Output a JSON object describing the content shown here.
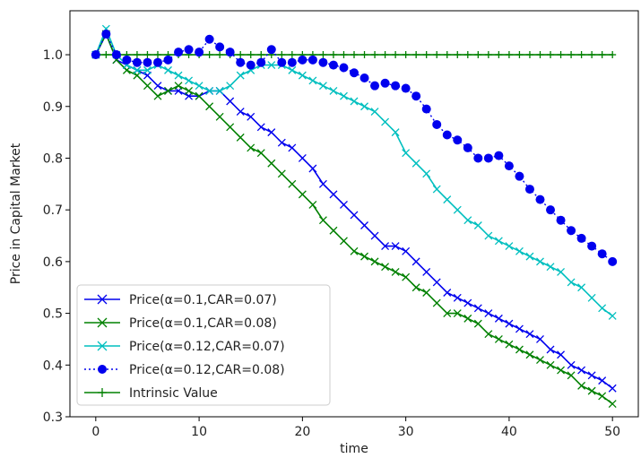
{
  "chart_data": {
    "type": "line",
    "title": "",
    "xlabel": "time",
    "ylabel": "Price in Capital Market",
    "xlim": [
      -2.5,
      52.5
    ],
    "ylim": [
      0.3,
      1.085
    ],
    "xticks": [
      0,
      10,
      20,
      30,
      40,
      50
    ],
    "yticks": [
      0.3,
      0.4,
      0.5,
      0.6,
      0.7,
      0.8,
      0.9,
      1.0
    ],
    "xtick_labels": [
      "0",
      "10",
      "20",
      "30",
      "40",
      "50"
    ],
    "ytick_labels": [
      "0.3",
      "0.4",
      "0.5",
      "0.6",
      "0.7",
      "0.8",
      "0.9",
      "1.0"
    ],
    "grid": false,
    "legend_position": "lower-left",
    "x": [
      0,
      1,
      2,
      3,
      4,
      5,
      6,
      7,
      8,
      9,
      10,
      11,
      12,
      13,
      14,
      15,
      16,
      17,
      18,
      19,
      20,
      21,
      22,
      23,
      24,
      25,
      26,
      27,
      28,
      29,
      30,
      31,
      32,
      33,
      34,
      35,
      36,
      37,
      38,
      39,
      40,
      41,
      42,
      43,
      44,
      45,
      46,
      47,
      48,
      49,
      50
    ],
    "series": [
      {
        "name": "Price(α=0.1,CAR=0.07)",
        "color": "#0000ee",
        "marker": "x",
        "linestyle": "solid",
        "values": [
          1.0,
          1.04,
          0.99,
          0.98,
          0.97,
          0.96,
          0.94,
          0.93,
          0.93,
          0.92,
          0.92,
          0.93,
          0.93,
          0.91,
          0.89,
          0.88,
          0.86,
          0.85,
          0.83,
          0.82,
          0.8,
          0.78,
          0.75,
          0.73,
          0.71,
          0.69,
          0.67,
          0.65,
          0.63,
          0.63,
          0.62,
          0.6,
          0.58,
          0.56,
          0.54,
          0.53,
          0.52,
          0.51,
          0.5,
          0.49,
          0.48,
          0.47,
          0.46,
          0.45,
          0.43,
          0.42,
          0.4,
          0.39,
          0.38,
          0.37,
          0.355
        ]
      },
      {
        "name": "Price(α=0.1,CAR=0.08)",
        "color": "#008000",
        "marker": "x",
        "linestyle": "solid",
        "values": [
          1.0,
          1.04,
          0.99,
          0.97,
          0.96,
          0.94,
          0.92,
          0.93,
          0.94,
          0.93,
          0.92,
          0.9,
          0.88,
          0.86,
          0.84,
          0.82,
          0.81,
          0.79,
          0.77,
          0.75,
          0.73,
          0.71,
          0.68,
          0.66,
          0.64,
          0.62,
          0.61,
          0.6,
          0.59,
          0.58,
          0.57,
          0.55,
          0.54,
          0.52,
          0.5,
          0.5,
          0.49,
          0.48,
          0.46,
          0.45,
          0.44,
          0.43,
          0.42,
          0.41,
          0.4,
          0.39,
          0.38,
          0.36,
          0.35,
          0.34,
          0.325
        ]
      },
      {
        "name": "Price(α=0.12,CAR=0.07)",
        "color": "#00bfbf",
        "marker": "x",
        "linestyle": "solid",
        "values": [
          1.0,
          1.05,
          1.0,
          0.98,
          0.97,
          0.97,
          0.98,
          0.97,
          0.96,
          0.95,
          0.94,
          0.93,
          0.93,
          0.94,
          0.96,
          0.97,
          0.98,
          0.98,
          0.98,
          0.97,
          0.96,
          0.95,
          0.94,
          0.93,
          0.92,
          0.91,
          0.9,
          0.89,
          0.87,
          0.85,
          0.81,
          0.79,
          0.77,
          0.74,
          0.72,
          0.7,
          0.68,
          0.67,
          0.65,
          0.64,
          0.63,
          0.62,
          0.61,
          0.6,
          0.59,
          0.58,
          0.56,
          0.55,
          0.53,
          0.51,
          0.495
        ]
      },
      {
        "name": "Price(α=0.12,CAR=0.08)",
        "color": "#0000ee",
        "marker": "o",
        "linestyle": "dotted",
        "values": [
          1.0,
          1.04,
          1.0,
          0.99,
          0.985,
          0.985,
          0.985,
          0.99,
          1.005,
          1.01,
          1.005,
          1.03,
          1.015,
          1.005,
          0.985,
          0.98,
          0.985,
          1.01,
          0.985,
          0.985,
          0.99,
          0.99,
          0.985,
          0.98,
          0.975,
          0.965,
          0.955,
          0.94,
          0.945,
          0.94,
          0.935,
          0.92,
          0.895,
          0.865,
          0.845,
          0.835,
          0.82,
          0.8,
          0.8,
          0.805,
          0.785,
          0.765,
          0.74,
          0.72,
          0.7,
          0.68,
          0.66,
          0.645,
          0.63,
          0.615,
          0.6
        ]
      },
      {
        "name": "Intrinsic Value",
        "color": "#008000",
        "marker": "+",
        "linestyle": "solid",
        "values": [
          1,
          1,
          1,
          1,
          1,
          1,
          1,
          1,
          1,
          1,
          1,
          1,
          1,
          1,
          1,
          1,
          1,
          1,
          1,
          1,
          1,
          1,
          1,
          1,
          1,
          1,
          1,
          1,
          1,
          1,
          1,
          1,
          1,
          1,
          1,
          1,
          1,
          1,
          1,
          1,
          1,
          1,
          1,
          1,
          1,
          1,
          1,
          1,
          1,
          1,
          1
        ]
      }
    ]
  }
}
